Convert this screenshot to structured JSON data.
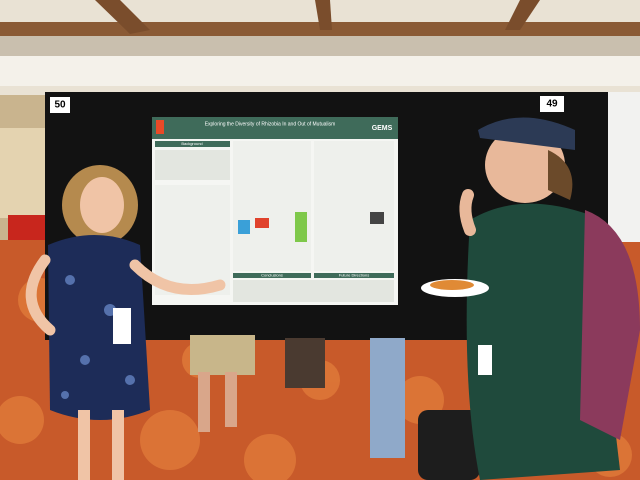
{
  "board_labels": {
    "left": "50",
    "right": "49"
  },
  "poster": {
    "title": "Exploring the Diversity of Rhizobia In and Out of Mutualism",
    "logo": "GEMS",
    "sections": [
      "Background",
      "Conclusions",
      "Future Directions"
    ]
  }
}
